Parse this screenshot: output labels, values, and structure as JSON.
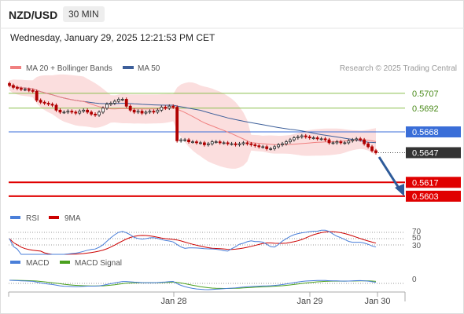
{
  "header": {
    "pair": "NZD/USD",
    "timeframe": "30 MIN",
    "datetime": "Wednesday, January 29, 2025 12:21:53 PM CET"
  },
  "colors": {
    "ma20": "#f08080",
    "bollinger_fill": "#f9d3d3",
    "ma50": "#3d5f9a",
    "resistance_green": "#8bbf4f",
    "pivot_blue": "#3a6ed8",
    "support_red": "#e00000",
    "current_price": "#333333",
    "rsi": "#4a7fd9",
    "rsi_9ma": "#cc0000",
    "macd": "#4a7fd9",
    "macd_signal": "#4aa01e",
    "arrow": "#2e5b9a"
  },
  "chart_data": [
    {
      "type": "candlestick",
      "legend": [
        {
          "label": "MA 20 + Bollinger Bands",
          "color": "#f08080"
        },
        {
          "label": "MA 50",
          "color": "#3d5f9a"
        }
      ],
      "credit": "Research © 2025 Trading Central",
      "ylim": [
        0.5595,
        0.5722
      ],
      "levels": [
        {
          "label": "0.5707",
          "value": 0.5707,
          "kind": "resistance"
        },
        {
          "label": "0.5692",
          "value": 0.5692,
          "kind": "resistance"
        },
        {
          "label": "0.5668",
          "value": 0.5668,
          "kind": "pivot"
        },
        {
          "label": "0.5647",
          "value": 0.5647,
          "kind": "current"
        },
        {
          "label": "0.5617",
          "value": 0.5617,
          "kind": "support"
        },
        {
          "label": "0.5603",
          "value": 0.5603,
          "kind": "support"
        }
      ],
      "x_ticks": [
        "Jan 28",
        "Jan 29",
        "Jan 30"
      ],
      "close": [
        0.5715,
        0.5713,
        0.5712,
        0.5711,
        0.5711,
        0.571,
        0.5709,
        0.57,
        0.5698,
        0.5697,
        0.5696,
        0.5695,
        0.569,
        0.5688,
        0.5688,
        0.5689,
        0.5688,
        0.5687,
        0.5689,
        0.569,
        0.5688,
        0.5686,
        0.5685,
        0.5688,
        0.5692,
        0.5696,
        0.5697,
        0.5699,
        0.5701,
        0.5701,
        0.5694,
        0.569,
        0.5688,
        0.5689,
        0.5687,
        0.5688,
        0.5689,
        0.5688,
        0.569,
        0.5693,
        0.5692,
        0.5694,
        0.5693,
        0.5659,
        0.566,
        0.566,
        0.5658,
        0.5658,
        0.5657,
        0.5657,
        0.5655,
        0.5656,
        0.5658,
        0.5658,
        0.5657,
        0.5657,
        0.5656,
        0.5656,
        0.5655,
        0.5656,
        0.5657,
        0.5656,
        0.5655,
        0.5654,
        0.5653,
        0.5653,
        0.5651,
        0.5651,
        0.5653,
        0.5655,
        0.5656,
        0.5658,
        0.566,
        0.5662,
        0.5663,
        0.5664,
        0.5663,
        0.5662,
        0.5662,
        0.5661,
        0.5661,
        0.566,
        0.5657,
        0.5657,
        0.5658,
        0.5657,
        0.5657,
        0.5659,
        0.566,
        0.5661,
        0.566,
        0.5656,
        0.5653,
        0.5649,
        0.5647
      ]
    },
    {
      "type": "line",
      "title": "RSI",
      "series": [
        {
          "name": "RSI"
        },
        {
          "name": "9MA"
        }
      ],
      "y_ticks": [
        "70",
        "50",
        "30"
      ],
      "ylim": [
        20,
        80
      ]
    },
    {
      "type": "line",
      "title": "MACD",
      "series": [
        {
          "name": "MACD"
        },
        {
          "name": "MACD Signal"
        }
      ],
      "y_ticks": [
        "0"
      ]
    }
  ]
}
